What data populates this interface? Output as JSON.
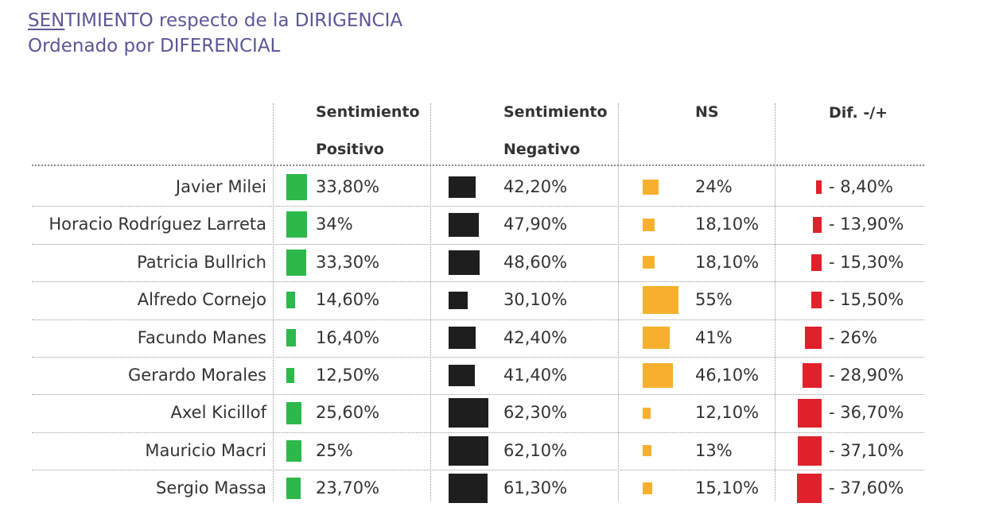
{
  "title": {
    "line1_first": "SEN",
    "line1_rest": "TIMIENTO respecto de la DIRIGENCIA",
    "line2": "Ordenado por DIFERENCIAL"
  },
  "headers": {
    "positive_1": "Sentimiento",
    "positive_2": "Positivo",
    "negative_1": "Sentimiento",
    "negative_2": "Negativo",
    "ns": "NS",
    "dif": "Dif. -/+"
  },
  "colors": {
    "positive": "#2db84a",
    "negative": "#1e1e1e",
    "ns": "#f6b02e",
    "dif": "#e0202a",
    "title": "#5a5796"
  },
  "chart_data": {
    "type": "table",
    "columns": [
      "Sentimiento Positivo",
      "Sentimiento Negativo",
      "NS",
      "Dif. -/+"
    ],
    "rows": [
      {
        "name": "Javier Milei",
        "pos": 33.8,
        "pos_label": "33,80%",
        "neg": 42.2,
        "neg_label": "42,20%",
        "ns": 24,
        "ns_label": "24%",
        "dif": -8.4,
        "dif_label": "- 8,40%"
      },
      {
        "name": "Horacio Rodríguez Larreta",
        "pos": 34,
        "pos_label": "34%",
        "neg": 47.9,
        "neg_label": "47,90%",
        "ns": 18.1,
        "ns_label": "18,10%",
        "dif": -13.9,
        "dif_label": "- 13,90%"
      },
      {
        "name": "Patricia Bullrich",
        "pos": 33.3,
        "pos_label": "33,30%",
        "neg": 48.6,
        "neg_label": "48,60%",
        "ns": 18.1,
        "ns_label": "18,10%",
        "dif": -15.3,
        "dif_label": "- 15,30%"
      },
      {
        "name": "Alfredo Cornejo",
        "pos": 14.6,
        "pos_label": "14,60%",
        "neg": 30.1,
        "neg_label": "30,10%",
        "ns": 55,
        "ns_label": "55%",
        "dif": -15.5,
        "dif_label": "- 15,50%"
      },
      {
        "name": "Facundo Manes",
        "pos": 16.4,
        "pos_label": "16,40%",
        "neg": 42.4,
        "neg_label": "42,40%",
        "ns": 41,
        "ns_label": "41%",
        "dif": -26,
        "dif_label": "- 26%"
      },
      {
        "name": "Gerardo Morales",
        "pos": 12.5,
        "pos_label": "12,50%",
        "neg": 41.4,
        "neg_label": "41,40%",
        "ns": 46.1,
        "ns_label": "46,10%",
        "dif": -28.9,
        "dif_label": "- 28,90%"
      },
      {
        "name": "Axel Kicillof",
        "pos": 25.6,
        "pos_label": "25,60%",
        "neg": 62.3,
        "neg_label": "62,30%",
        "ns": 12.1,
        "ns_label": "12,10%",
        "dif": -36.7,
        "dif_label": "- 36,70%"
      },
      {
        "name": "Mauricio Macri",
        "pos": 25,
        "pos_label": "25%",
        "neg": 62.1,
        "neg_label": "62,10%",
        "ns": 13,
        "ns_label": "13%",
        "dif": -37.1,
        "dif_label": "- 37,10%"
      },
      {
        "name": "Sergio Massa",
        "pos": 23.7,
        "pos_label": "23,70%",
        "neg": 61.3,
        "neg_label": "61,30%",
        "ns": 15.1,
        "ns_label": "15,10%",
        "dif": -37.6,
        "dif_label": "- 37,60%"
      }
    ]
  }
}
